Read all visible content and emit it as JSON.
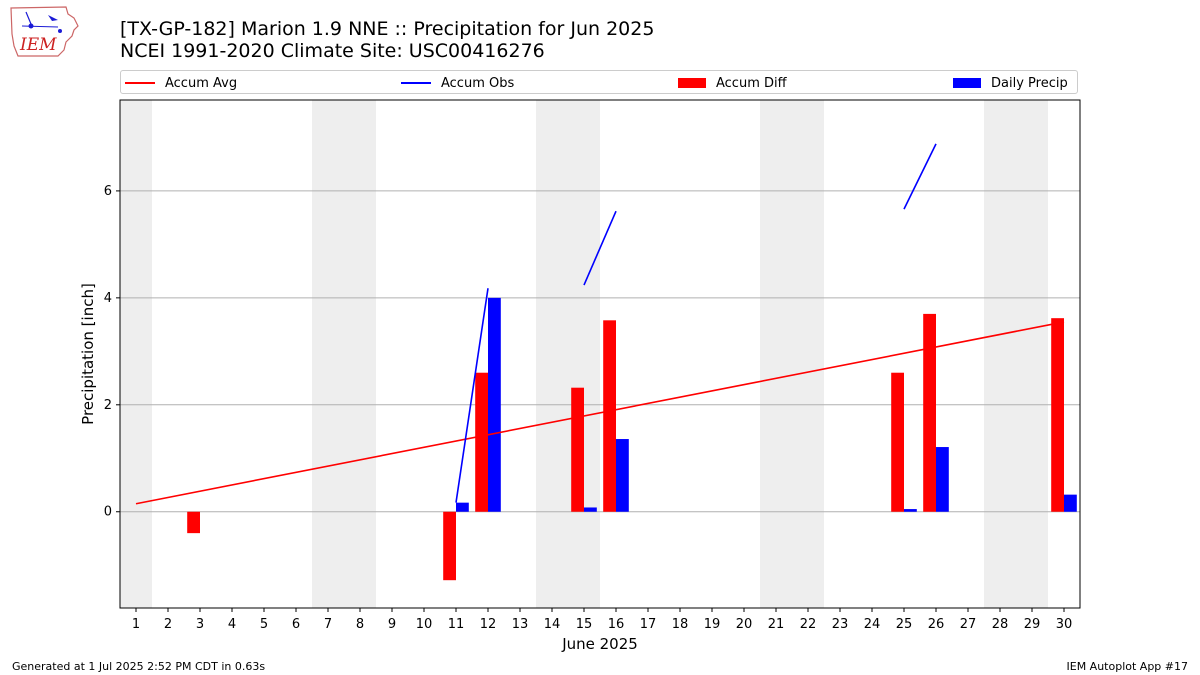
{
  "logo": {
    "text": "IEM",
    "color": "#cc2222"
  },
  "header": {
    "title": "[TX-GP-182] Marion 1.9 NNE :: Precipitation for Jun 2025",
    "subtitle": "NCEI 1991-2020 Climate Site: USC00416276"
  },
  "footer": {
    "generated": "Generated at 1 Jul 2025 2:52 PM CDT in 0.63s",
    "app": "IEM Autoplot App #17"
  },
  "chart_data": {
    "type": "bar",
    "xlabel": "June 2025",
    "ylabel": "Precipitation [inch]",
    "xlim": [
      0.5,
      30.5
    ],
    "ylim": [
      -1.8,
      7.7
    ],
    "yticks": [
      0,
      2,
      4,
      6
    ],
    "categories": [
      "1",
      "2",
      "3",
      "4",
      "5",
      "6",
      "7",
      "8",
      "9",
      "10",
      "11",
      "12",
      "13",
      "14",
      "15",
      "16",
      "17",
      "18",
      "19",
      "20",
      "21",
      "22",
      "23",
      "24",
      "25",
      "26",
      "27",
      "28",
      "29",
      "30"
    ],
    "weekend_days": [
      1,
      7,
      8,
      14,
      15,
      21,
      22,
      28,
      29
    ],
    "grid": "horizontal",
    "legend": "top",
    "series": [
      {
        "name": "Accum Avg",
        "kind": "line",
        "color": "#ff0000",
        "start": [
          1,
          0.15
        ],
        "end": [
          30,
          3.55
        ]
      },
      {
        "name": "Accum Obs",
        "kind": "line",
        "color": "#0000ff",
        "segments": [
          [
            [
              11,
              0.17
            ],
            [
              12,
              4.18
            ]
          ],
          [
            [
              15,
              4.24
            ],
            [
              16,
              5.62
            ]
          ],
          [
            [
              25,
              5.66
            ],
            [
              26,
              6.88
            ]
          ]
        ]
      },
      {
        "name": "Accum Diff",
        "kind": "bar",
        "color": "#ff0000",
        "points": [
          [
            3,
            -0.4
          ],
          [
            11,
            -1.28
          ],
          [
            12,
            2.6
          ],
          [
            15,
            2.32
          ],
          [
            16,
            3.58
          ],
          [
            25,
            2.6
          ],
          [
            26,
            3.7
          ],
          [
            30,
            3.62
          ]
        ]
      },
      {
        "name": "Daily Precip",
        "kind": "bar",
        "color": "#0000ff",
        "points": [
          [
            11,
            0.17
          ],
          [
            12,
            4.0
          ],
          [
            15,
            0.08
          ],
          [
            16,
            1.36
          ],
          [
            25,
            0.05
          ],
          [
            26,
            1.21
          ],
          [
            30,
            0.32
          ]
        ]
      }
    ]
  }
}
